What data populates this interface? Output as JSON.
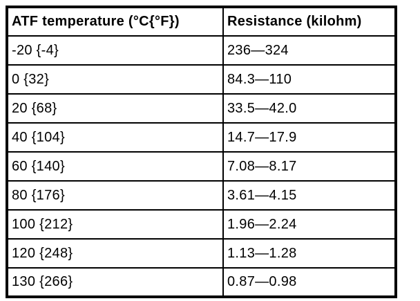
{
  "colors": {
    "border": "#000000",
    "text": "#000000",
    "background": "#ffffff"
  },
  "table": {
    "headers": [
      "ATF temperature (°C{°F})",
      "Resistance (kilohm)"
    ],
    "rows": [
      [
        "-20 {-4}",
        "236—324"
      ],
      [
        "0 {32}",
        "84.3—110"
      ],
      [
        "20 {68}",
        "33.5—42.0"
      ],
      [
        "40 {104}",
        "14.7—17.9"
      ],
      [
        "60 {140}",
        "7.08—8.17"
      ],
      [
        "80 {176}",
        "3.61—4.15"
      ],
      [
        "100 {212}",
        "1.96—2.24"
      ],
      [
        "120 {248}",
        "1.13—1.28"
      ],
      [
        "130 {266}",
        "0.87—0.98"
      ]
    ]
  },
  "chart_data": {
    "type": "table",
    "title": "",
    "columns": [
      "ATF temperature (°C{°F})",
      "Resistance (kilohm)"
    ],
    "temperature_c": [
      -20,
      0,
      20,
      40,
      60,
      80,
      100,
      120,
      130
    ],
    "temperature_f": [
      -4,
      32,
      68,
      104,
      140,
      176,
      212,
      248,
      266
    ],
    "resistance_kilohm_min": [
      236,
      84.3,
      33.5,
      14.7,
      7.08,
      3.61,
      1.96,
      1.13,
      0.87
    ],
    "resistance_kilohm_max": [
      324,
      110,
      42.0,
      17.9,
      8.17,
      4.15,
      2.24,
      1.28,
      0.98
    ]
  }
}
